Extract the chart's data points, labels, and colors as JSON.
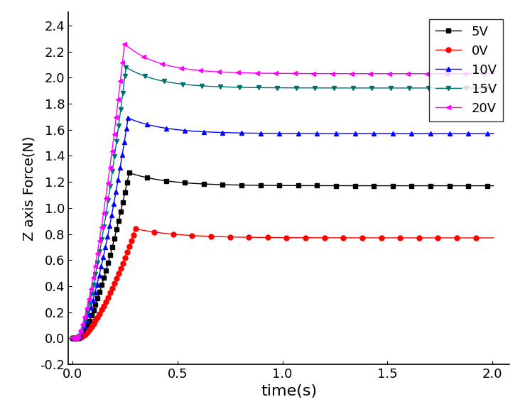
{
  "title": "",
  "xlabel": "time(s)",
  "ylabel": "Z axis Force(N)",
  "xlim": [
    -0.02,
    2.08
  ],
  "ylim": [
    -0.2,
    2.5
  ],
  "xticks": [
    0.0,
    0.5,
    1.0,
    1.5,
    2.0
  ],
  "yticks": [
    -0.2,
    0.0,
    0.2,
    0.4,
    0.6,
    0.8,
    1.0,
    1.2,
    1.4,
    1.6,
    1.8,
    2.0,
    2.2,
    2.4
  ],
  "series": [
    {
      "label": "5V",
      "color": "#000000",
      "marker": "s",
      "peak_time": 0.27,
      "peak_val": 1.27,
      "steady": 1.17,
      "rise_start": 0.025,
      "tau": 0.18
    },
    {
      "label": "0V",
      "color": "#ff0000",
      "marker": "o",
      "peak_time": 0.3,
      "peak_val": 0.84,
      "steady": 0.77,
      "rise_start": 0.03,
      "tau": 0.2
    },
    {
      "label": "10V",
      "color": "#0000ff",
      "marker": "^",
      "peak_time": 0.265,
      "peak_val": 1.69,
      "steady": 1.57,
      "rise_start": 0.022,
      "tau": 0.17
    },
    {
      "label": "15V",
      "color": "#007070",
      "marker": "v",
      "peak_time": 0.255,
      "peak_val": 2.08,
      "steady": 1.92,
      "rise_start": 0.02,
      "tau": 0.16
    },
    {
      "label": "20V",
      "color": "#ff00ff",
      "marker": "<",
      "peak_time": 0.248,
      "peak_val": 2.26,
      "steady": 2.03,
      "rise_start": 0.018,
      "tau": 0.16
    }
  ],
  "legend_loc": "upper right",
  "markersize": 5,
  "linewidth": 1.0,
  "xlabel_fontsize": 16,
  "ylabel_fontsize": 14,
  "tick_labelsize": 13,
  "marker_dt": 0.01,
  "decay_marker_dt": 0.09
}
